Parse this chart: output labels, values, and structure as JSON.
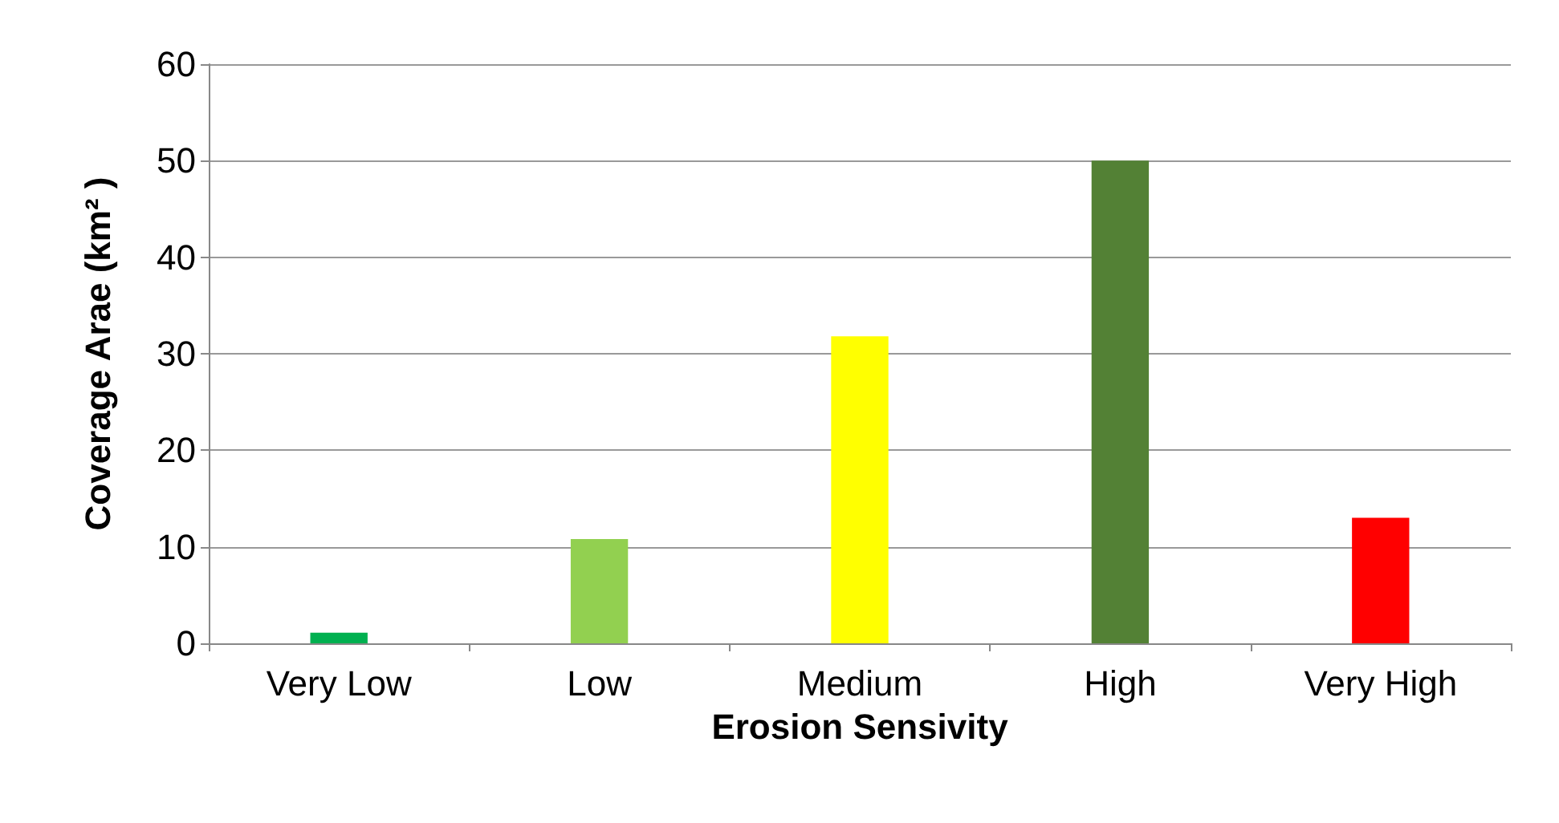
{
  "chart_data": {
    "type": "bar",
    "xlabel": "Erosion Sensivity",
    "ylabel": "Coverage Arae (km² )",
    "categories": [
      "Very Low",
      "Low",
      "Medium",
      "High",
      "Very High"
    ],
    "values": [
      1.1,
      10.8,
      31.8,
      50,
      13
    ],
    "colors": [
      "#00b050",
      "#92d050",
      "#ffff00",
      "#538135",
      "#ff0000"
    ],
    "ylim": [
      0,
      60
    ],
    "yticks": [
      0,
      10,
      20,
      30,
      40,
      50,
      60
    ],
    "grid": "y"
  }
}
